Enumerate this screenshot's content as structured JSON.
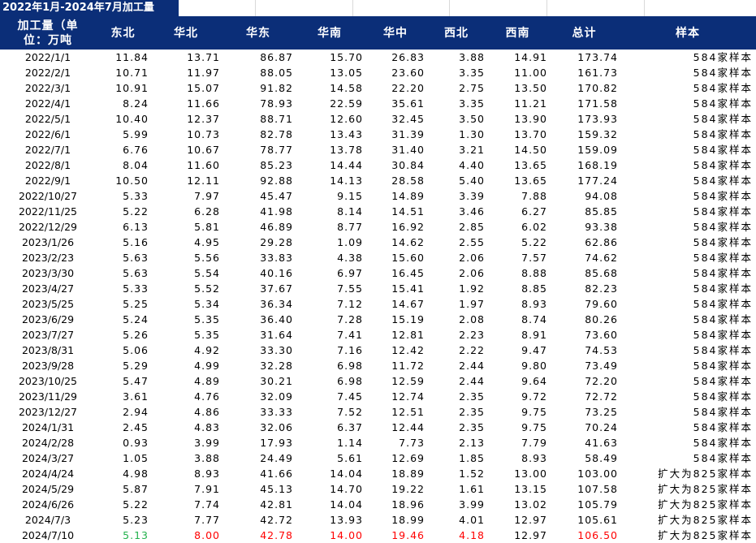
{
  "title": "2022年1月-2024年7月加工量",
  "headers": [
    "加工量（单位：万吨",
    "东北",
    "华北",
    "华东",
    "华南",
    "华中",
    "西北",
    "西南",
    "总计",
    "样本"
  ],
  "header_first_line1": "加工量（单",
  "header_first_line2": "位：万吨",
  "rows": [
    [
      "2022/1/1",
      "11.84",
      "13.71",
      "86.87",
      "15.70",
      "26.83",
      "3.88",
      "14.91",
      "173.74",
      "584家样本"
    ],
    [
      "2022/2/1",
      "10.71",
      "11.97",
      "88.05",
      "13.05",
      "23.60",
      "3.35",
      "11.00",
      "161.73",
      "584家样本"
    ],
    [
      "2022/3/1",
      "10.91",
      "15.07",
      "91.82",
      "14.58",
      "22.20",
      "2.75",
      "13.50",
      "170.82",
      "584家样本"
    ],
    [
      "2022/4/1",
      "8.24",
      "11.66",
      "78.93",
      "22.59",
      "35.61",
      "3.35",
      "11.21",
      "171.58",
      "584家样本"
    ],
    [
      "2022/5/1",
      "10.40",
      "12.37",
      "88.71",
      "12.60",
      "32.45",
      "3.50",
      "13.90",
      "173.93",
      "584家样本"
    ],
    [
      "2022/6/1",
      "5.99",
      "10.73",
      "82.78",
      "13.43",
      "31.39",
      "1.30",
      "13.70",
      "159.32",
      "584家样本"
    ],
    [
      "2022/7/1",
      "6.76",
      "10.67",
      "78.77",
      "13.78",
      "31.40",
      "3.21",
      "14.50",
      "159.09",
      "584家样本"
    ],
    [
      "2022/8/1",
      "8.04",
      "11.60",
      "85.23",
      "14.44",
      "30.84",
      "4.40",
      "13.65",
      "168.19",
      "584家样本"
    ],
    [
      "2022/9/1",
      "10.50",
      "12.11",
      "92.88",
      "14.13",
      "28.58",
      "5.40",
      "13.65",
      "177.24",
      "584家样本"
    ],
    [
      "2022/10/27",
      "5.33",
      "7.97",
      "45.47",
      "9.15",
      "14.89",
      "3.39",
      "7.88",
      "94.08",
      "584家样本"
    ],
    [
      "2022/11/25",
      "5.22",
      "6.28",
      "41.98",
      "8.14",
      "14.51",
      "3.46",
      "6.27",
      "85.85",
      "584家样本"
    ],
    [
      "2022/12/29",
      "6.13",
      "5.81",
      "46.89",
      "8.77",
      "16.92",
      "2.85",
      "6.02",
      "93.38",
      "584家样本"
    ],
    [
      "2023/1/26",
      "5.16",
      "4.95",
      "29.28",
      "1.09",
      "14.62",
      "2.55",
      "5.22",
      "62.86",
      "584家样本"
    ],
    [
      "2023/2/23",
      "5.63",
      "5.56",
      "33.83",
      "4.38",
      "15.60",
      "2.06",
      "7.57",
      "74.62",
      "584家样本"
    ],
    [
      "2023/3/30",
      "5.63",
      "5.54",
      "40.16",
      "6.97",
      "16.45",
      "2.06",
      "8.88",
      "85.68",
      "584家样本"
    ],
    [
      "2023/4/27",
      "5.33",
      "5.52",
      "37.67",
      "7.55",
      "15.41",
      "1.92",
      "8.85",
      "82.23",
      "584家样本"
    ],
    [
      "2023/5/25",
      "5.25",
      "5.34",
      "36.34",
      "7.12",
      "14.67",
      "1.97",
      "8.93",
      "79.60",
      "584家样本"
    ],
    [
      "2023/6/29",
      "5.24",
      "5.35",
      "36.40",
      "7.28",
      "15.19",
      "2.08",
      "8.74",
      "80.26",
      "584家样本"
    ],
    [
      "2023/7/27",
      "5.26",
      "5.35",
      "31.64",
      "7.41",
      "12.81",
      "2.23",
      "8.91",
      "73.60",
      "584家样本"
    ],
    [
      "2023/8/31",
      "5.06",
      "4.92",
      "33.30",
      "7.16",
      "12.42",
      "2.22",
      "9.47",
      "74.53",
      "584家样本"
    ],
    [
      "2023/9/28",
      "5.29",
      "4.99",
      "32.28",
      "6.98",
      "11.72",
      "2.44",
      "9.80",
      "73.49",
      "584家样本"
    ],
    [
      "2023/10/25",
      "5.47",
      "4.89",
      "30.21",
      "6.98",
      "12.59",
      "2.44",
      "9.64",
      "72.20",
      "584家样本"
    ],
    [
      "2023/11/29",
      "3.61",
      "4.76",
      "32.09",
      "7.45",
      "12.74",
      "2.35",
      "9.72",
      "72.72",
      "584家样本"
    ],
    [
      "2023/12/27",
      "2.94",
      "4.86",
      "33.33",
      "7.52",
      "12.51",
      "2.35",
      "9.75",
      "73.25",
      "584家样本"
    ],
    [
      "2024/1/31",
      "2.45",
      "4.83",
      "32.06",
      "6.37",
      "12.44",
      "2.35",
      "9.75",
      "70.24",
      "584家样本"
    ],
    [
      "2024/2/28",
      "0.93",
      "3.99",
      "17.93",
      "1.14",
      "7.73",
      "2.13",
      "7.79",
      "41.63",
      "584家样本"
    ],
    [
      "2024/3/27",
      "1.05",
      "3.88",
      "24.49",
      "5.61",
      "12.69",
      "1.85",
      "8.93",
      "58.49",
      "584家样本"
    ],
    [
      "2024/4/24",
      "4.98",
      "8.93",
      "41.66",
      "14.04",
      "18.89",
      "1.52",
      "13.00",
      "103.00",
      "扩大为825家样本"
    ],
    [
      "2024/5/29",
      "5.87",
      "7.91",
      "45.13",
      "14.70",
      "19.22",
      "1.61",
      "13.15",
      "107.58",
      "扩大为825家样本"
    ],
    [
      "2024/6/26",
      "5.22",
      "7.74",
      "42.81",
      "14.04",
      "18.96",
      "3.99",
      "13.02",
      "105.79",
      "扩大为825家样本"
    ],
    [
      "2024/7/3",
      "5.23",
      "7.77",
      "42.72",
      "13.93",
      "18.99",
      "4.01",
      "12.97",
      "105.61",
      "扩大为825家样本"
    ],
    [
      "2024/7/10",
      "5.13",
      "8.00",
      "42.78",
      "14.00",
      "19.46",
      "4.18",
      "12.97",
      "106.50",
      "扩大为825家样本"
    ]
  ],
  "last_row_colors": [
    "",
    "green",
    "red",
    "red",
    "red",
    "red",
    "red",
    "",
    "red",
    ""
  ],
  "colors": {
    "header_bg": "#0b2e78",
    "header_text": "#ffffff",
    "up": "#ff0000",
    "down": "#22b14c"
  }
}
